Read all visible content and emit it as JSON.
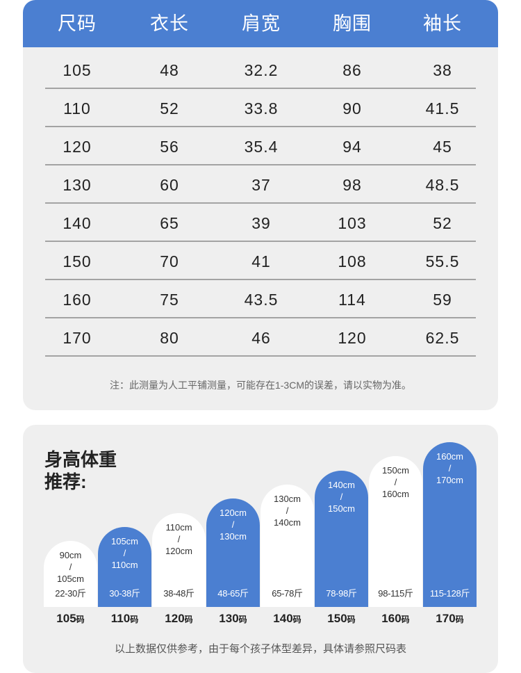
{
  "size_table": {
    "headers": [
      "尺码",
      "衣长",
      "肩宽",
      "胸围",
      "袖长"
    ],
    "rows": [
      [
        "105",
        "48",
        "32.2",
        "86",
        "38"
      ],
      [
        "110",
        "52",
        "33.8",
        "90",
        "41.5"
      ],
      [
        "120",
        "56",
        "35.4",
        "94",
        "45"
      ],
      [
        "130",
        "60",
        "37",
        "98",
        "48.5"
      ],
      [
        "140",
        "65",
        "39",
        "103",
        "52"
      ],
      [
        "150",
        "70",
        "41",
        "108",
        "55.5"
      ],
      [
        "160",
        "75",
        "43.5",
        "114",
        "59"
      ],
      [
        "170",
        "80",
        "46",
        "120",
        "62.5"
      ]
    ],
    "note": "注：此测量为人工平铺测量，可能存在1-3CM的误差，请以实物为准。"
  },
  "recommend": {
    "title_line1": "身高体重",
    "title_line2": "推荐:",
    "unit": "码",
    "columns": [
      {
        "height": "90cm\n/\n105cm",
        "weight": "22-30斤",
        "size": "105",
        "style": "white"
      },
      {
        "height": "105cm\n/\n110cm",
        "weight": "30-38斤",
        "size": "110",
        "style": "blue"
      },
      {
        "height": "110cm\n/\n120cm",
        "weight": "38-48斤",
        "size": "120",
        "style": "white"
      },
      {
        "height": "120cm\n/\n130cm",
        "weight": "48-65斤",
        "size": "130",
        "style": "blue"
      },
      {
        "height": "130cm\n/\n140cm",
        "weight": "65-78斤",
        "size": "140",
        "style": "white"
      },
      {
        "height": "140cm\n/\n150cm",
        "weight": "78-98斤",
        "size": "150",
        "style": "blue"
      },
      {
        "height": "150cm\n/\n160cm",
        "weight": "98-115斤",
        "size": "160",
        "style": "white"
      },
      {
        "height": "160cm\n/\n170cm",
        "weight": "115-128斤",
        "size": "170",
        "style": "blue"
      }
    ],
    "footer": "以上数据仅供参考，由于每个孩子体型差异，具体请参照尺码表"
  },
  "colors": {
    "accent": "#4b7fd1",
    "card_bg": "#efefef",
    "divider": "#a3a3a3"
  }
}
